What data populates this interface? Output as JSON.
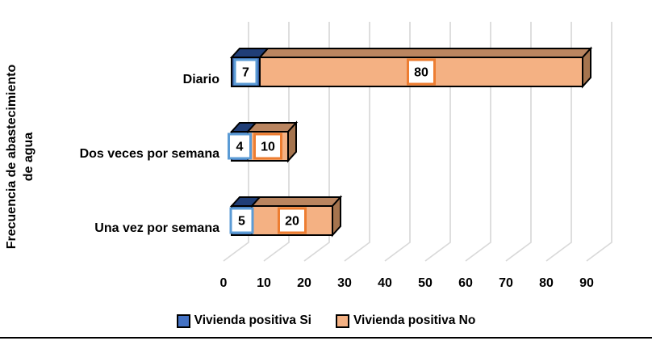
{
  "chart_data": {
    "type": "bar",
    "subtype": "3d-horizontal-stacked",
    "title": "",
    "ylabel": "Frecuencia de abastecimiento de agua",
    "ylabel_lines": [
      "Frecuencia de abastecimiento",
      "de agua"
    ],
    "xlabel": "",
    "categories": [
      "Diario",
      "Dos veces por semana",
      "Una vez por semana"
    ],
    "series": [
      {
        "name": "Vivienda positiva Si",
        "values": [
          7,
          4,
          5
        ],
        "front_color": "#35599E",
        "top_color": "#203E77",
        "side_color": "#1A3260",
        "label_border_color": "#5B9BD5",
        "legend_color": "#4472C4"
      },
      {
        "name": "Vivienda positiva No",
        "values": [
          80,
          10,
          20
        ],
        "front_color": "#F4B183",
        "top_color": "#BA8560",
        "side_color": "#A5744E",
        "label_border_color": "#ED7D31",
        "legend_color": "#F4B183"
      }
    ],
    "x_ticks": [
      0,
      10,
      20,
      30,
      40,
      50,
      60,
      70,
      80,
      90
    ],
    "xlim": [
      0,
      90
    ],
    "grid": true,
    "gridline_color": "#D9D9D9",
    "data_labels": true,
    "data_label_fill": "#FFFFFF",
    "text_color": "#000000",
    "outline_color": "#000000",
    "legend_position": "bottom"
  }
}
